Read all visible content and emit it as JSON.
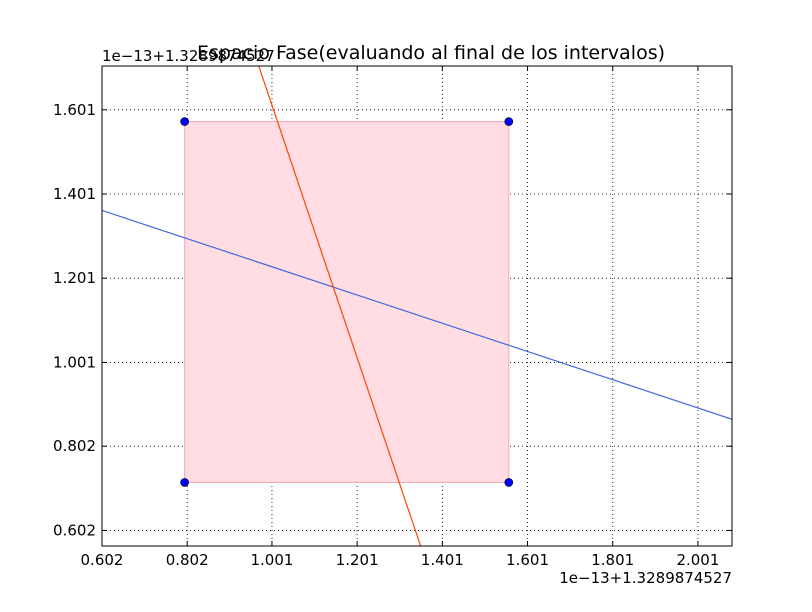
{
  "chart_data": {
    "type": "line",
    "title": "Espacio Fase(evaluando al final de los intervalos)",
    "x_offset_label": "1e−13+1.3289874527",
    "y_offset_label": "1e−13+1.3289874527",
    "xlim": [
      0.602,
      2.081
    ],
    "ylim": [
      0.565,
      1.705
    ],
    "x_ticks": [
      {
        "value": 0.602,
        "label": "0.602"
      },
      {
        "value": 0.802,
        "label": "0.802"
      },
      {
        "value": 1.001,
        "label": "1.001"
      },
      {
        "value": 1.201,
        "label": "1.201"
      },
      {
        "value": 1.401,
        "label": "1.401"
      },
      {
        "value": 1.601,
        "label": "1.601"
      },
      {
        "value": 1.801,
        "label": "1.801"
      },
      {
        "value": 2.001,
        "label": "2.001"
      }
    ],
    "y_ticks": [
      {
        "value": 0.602,
        "label": "0.602"
      },
      {
        "value": 0.802,
        "label": "0.802"
      },
      {
        "value": 1.001,
        "label": "1.001"
      },
      {
        "value": 1.201,
        "label": "1.201"
      },
      {
        "value": 1.401,
        "label": "1.401"
      },
      {
        "value": 1.601,
        "label": "1.601"
      }
    ],
    "grid": true,
    "region": {
      "x": [
        0.796,
        1.557
      ],
      "y": [
        0.716,
        1.573
      ],
      "color": "#ffdde3",
      "edge_color": "#f4a6b4"
    },
    "corner_points": {
      "x": [
        0.796,
        1.557,
        0.796,
        1.557
      ],
      "y": [
        1.573,
        1.573,
        0.716,
        0.716
      ],
      "color": "#0000ff"
    },
    "series": [
      {
        "x": [
          0.602,
          2.081
        ],
        "y": [
          1.362,
          0.866
        ],
        "color": "#4169e1"
      },
      {
        "x": [
          0.97,
          1.35
        ],
        "y": [
          1.705,
          0.565
        ],
        "color": "#ff4500"
      }
    ]
  }
}
